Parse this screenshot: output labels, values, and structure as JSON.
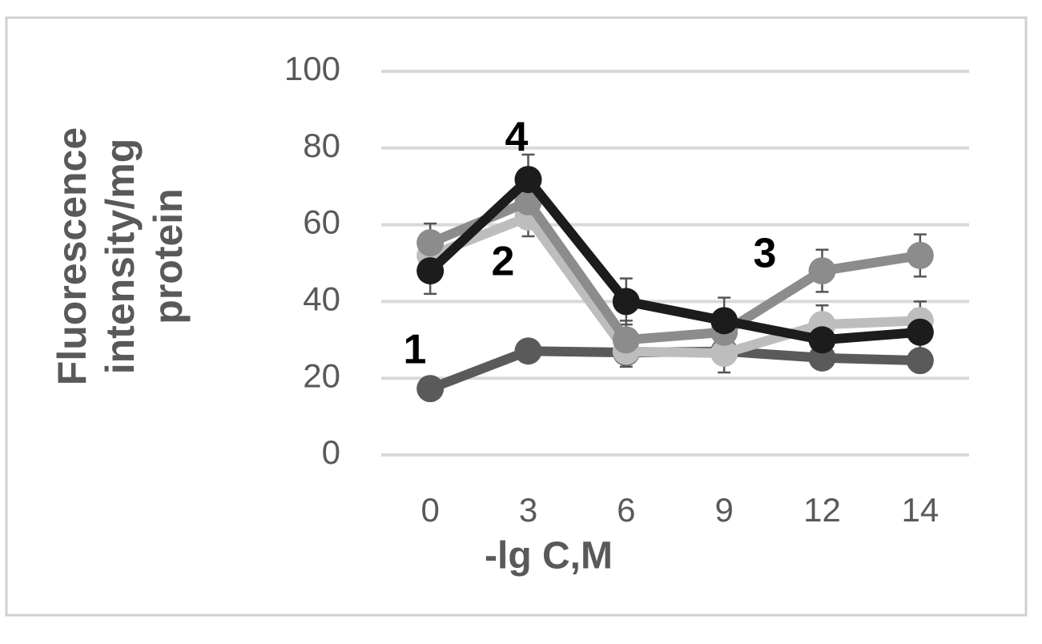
{
  "chart_data": {
    "type": "line",
    "y_label": "Fluorescence intensity/mg protein",
    "x_label": "-lg C,M",
    "categories": [
      "0",
      "3",
      "6",
      "9",
      "12",
      "14"
    ],
    "series": [
      {
        "name": "1",
        "color": "#5a5a5a",
        "values": [
          17.3,
          27.1,
          26.7,
          27,
          25.3,
          24.6
        ]
      },
      {
        "name": "2",
        "color": "#bdbdbd",
        "values": [
          52,
          62,
          27,
          26.5,
          34,
          35
        ],
        "errors": [
          4,
          5,
          4,
          5,
          5,
          5
        ]
      },
      {
        "name": "3",
        "color": "#8c8c8c",
        "values": [
          55.3,
          66,
          30,
          32,
          48,
          52
        ],
        "errors": [
          5,
          6,
          5,
          5,
          5.5,
          5.5
        ]
      },
      {
        "name": "4",
        "color": "#1c1c1c",
        "values": [
          48,
          71.8,
          40,
          35,
          30,
          32
        ],
        "errors": [
          6,
          6.5,
          6,
          6,
          6,
          6
        ]
      }
    ],
    "ylim": [
      0,
      100
    ],
    "yticks": [
      0,
      20,
      40,
      60,
      80,
      100
    ],
    "grid": true
  }
}
